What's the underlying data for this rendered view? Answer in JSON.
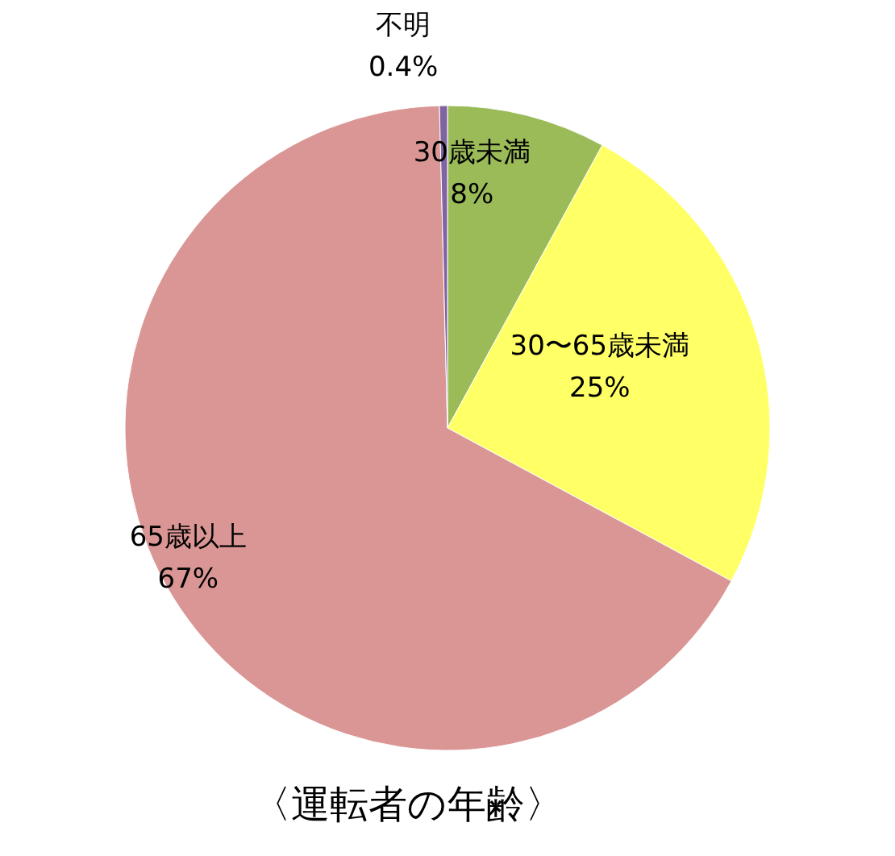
{
  "chart_data": {
    "type": "pie",
    "title": "〈運転者の年齢〉",
    "categories": [
      "30歳未満",
      "30〜65歳未満",
      "65歳以上",
      "不明"
    ],
    "values": [
      8,
      25,
      67,
      0.4
    ],
    "value_labels": [
      "8%",
      "25%",
      "67%",
      "0.4%"
    ],
    "colors": [
      "#9bbb59",
      "#ffff66",
      "#d99694",
      "#8064a2"
    ]
  }
}
